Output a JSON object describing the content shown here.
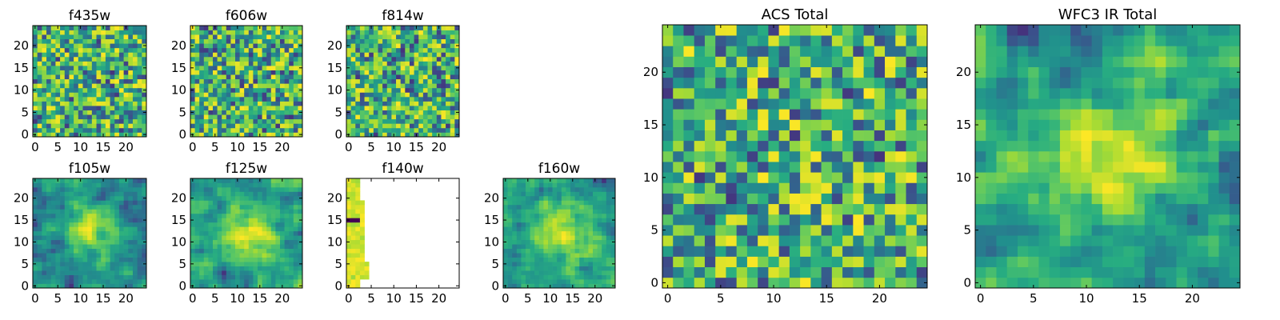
{
  "chart_data": [
    {
      "type": "heatmap",
      "title": "f435w",
      "colormap": "viridis",
      "grid_size": 25,
      "xlim": [
        -0.5,
        24.5
      ],
      "ylim": [
        -0.5,
        24.5
      ],
      "xticks": [
        0,
        5,
        10,
        15,
        20
      ],
      "yticks": [
        0,
        5,
        10,
        15,
        20
      ],
      "pattern": "noise",
      "valid_columns": 25
    },
    {
      "type": "heatmap",
      "title": "f606w",
      "colormap": "viridis",
      "grid_size": 25,
      "xlim": [
        -0.5,
        24.5
      ],
      "ylim": [
        -0.5,
        24.5
      ],
      "xticks": [
        0,
        5,
        10,
        15,
        20
      ],
      "yticks": [
        0,
        5,
        10,
        15,
        20
      ],
      "pattern": "noise",
      "valid_columns": 25
    },
    {
      "type": "heatmap",
      "title": "f814w",
      "colormap": "viridis",
      "grid_size": 25,
      "xlim": [
        -0.5,
        24.5
      ],
      "ylim": [
        -0.5,
        24.5
      ],
      "xticks": [
        0,
        5,
        10,
        15,
        20
      ],
      "yticks": [
        0,
        5,
        10,
        15,
        20
      ],
      "pattern": "noise",
      "valid_columns": 25
    },
    {
      "type": "heatmap",
      "title": "f105w",
      "colormap": "viridis",
      "grid_size": 25,
      "xlim": [
        -0.5,
        24.5
      ],
      "ylim": [
        -0.5,
        24.5
      ],
      "xticks": [
        0,
        5,
        10,
        15,
        20
      ],
      "yticks": [
        0,
        5,
        10,
        15,
        20
      ],
      "pattern": "smooth",
      "valid_columns": 25
    },
    {
      "type": "heatmap",
      "title": "f125w",
      "colormap": "viridis",
      "grid_size": 25,
      "xlim": [
        -0.5,
        24.5
      ],
      "ylim": [
        -0.5,
        24.5
      ],
      "xticks": [
        0,
        5,
        10,
        15,
        20
      ],
      "yticks": [
        0,
        5,
        10,
        15,
        20
      ],
      "pattern": "smooth",
      "valid_columns": 25
    },
    {
      "type": "heatmap",
      "title": "f140w",
      "colormap": "viridis",
      "grid_size": 25,
      "xlim": [
        -0.5,
        24.5
      ],
      "ylim": [
        -0.5,
        24.5
      ],
      "xticks": [
        0,
        5,
        10,
        15,
        20
      ],
      "yticks": [
        0,
        5,
        10,
        15,
        20
      ],
      "pattern": "partial",
      "valid_columns": 5,
      "note_blank": "data present only for columns 0-4"
    },
    {
      "type": "heatmap",
      "title": "f160w",
      "colormap": "viridis",
      "grid_size": 25,
      "xlim": [
        -0.5,
        24.5
      ],
      "ylim": [
        -0.5,
        24.5
      ],
      "xticks": [
        0,
        5,
        10,
        15,
        20
      ],
      "yticks": [
        0,
        5,
        10,
        15,
        20
      ],
      "pattern": "smooth",
      "valid_columns": 25
    },
    {
      "type": "heatmap",
      "title": "ACS Total",
      "colormap": "viridis",
      "grid_size": 25,
      "xlim": [
        -0.5,
        24.5
      ],
      "ylim": [
        -0.5,
        24.5
      ],
      "xticks": [
        0,
        5,
        10,
        15,
        20
      ],
      "yticks": [
        0,
        5,
        10,
        15,
        20
      ],
      "pattern": "noise",
      "valid_columns": 25
    },
    {
      "type": "heatmap",
      "title": "WFC3 IR Total",
      "colormap": "viridis",
      "grid_size": 25,
      "xlim": [
        -0.5,
        24.5
      ],
      "ylim": [
        -0.5,
        24.5
      ],
      "xticks": [
        0,
        5,
        10,
        15,
        20
      ],
      "yticks": [
        0,
        5,
        10,
        15,
        20
      ],
      "pattern": "smooth",
      "valid_columns": 25
    }
  ],
  "colors": {
    "viridis_dark": "#440154",
    "viridis_mid": "#21918c",
    "viridis_bright": "#fde725"
  }
}
